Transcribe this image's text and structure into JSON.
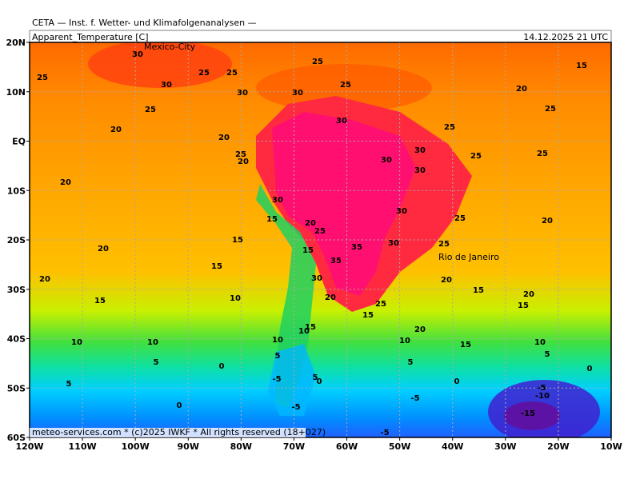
{
  "header": {
    "institute": "CETA — Inst. f. Wetter- und Klimafolgenanalysen —",
    "field": "Apparent_Temperature [C]",
    "timestamp": "14.12.2025 21 UTC"
  },
  "footer": "meteo-services.com * (c)2025 IWKF * All rights reserved (18+027)",
  "axes": {
    "longitudes": [
      "120W",
      "110W",
      "100W",
      "90W",
      "80W",
      "70W",
      "60W",
      "50W",
      "40W",
      "30W",
      "20W",
      "10W"
    ],
    "latitudes": [
      "20N",
      "10N",
      "EQ",
      "10S",
      "20S",
      "30S",
      "40S",
      "50S",
      "60S"
    ]
  },
  "cities": [
    "Mexico-City",
    "Rio de Janeiro"
  ],
  "contour_labels": [
    "25",
    "25",
    "25",
    "30",
    "25",
    "20",
    "30",
    "25",
    "25",
    "30",
    "30",
    "25",
    "20",
    "25",
    "15",
    "25",
    "25",
    "30",
    "30",
    "30",
    "20",
    "20",
    "25",
    "20",
    "30",
    "30",
    "25",
    "20",
    "15",
    "20",
    "25",
    "15",
    "20",
    "30",
    "25",
    "35",
    "35",
    "15",
    "15",
    "30",
    "20",
    "20",
    "15",
    "20",
    "15",
    "20",
    "25",
    "15",
    "10",
    "15",
    "20",
    "15",
    "10",
    "10",
    "10",
    "10",
    "10",
    "15",
    "10",
    "5",
    "5",
    "0",
    "5",
    "5",
    "0",
    "5",
    "0",
    "-5",
    "0",
    "5",
    "-5",
    "-10",
    "-5",
    "0",
    "-5",
    "-15",
    "-5",
    "30"
  ]
}
